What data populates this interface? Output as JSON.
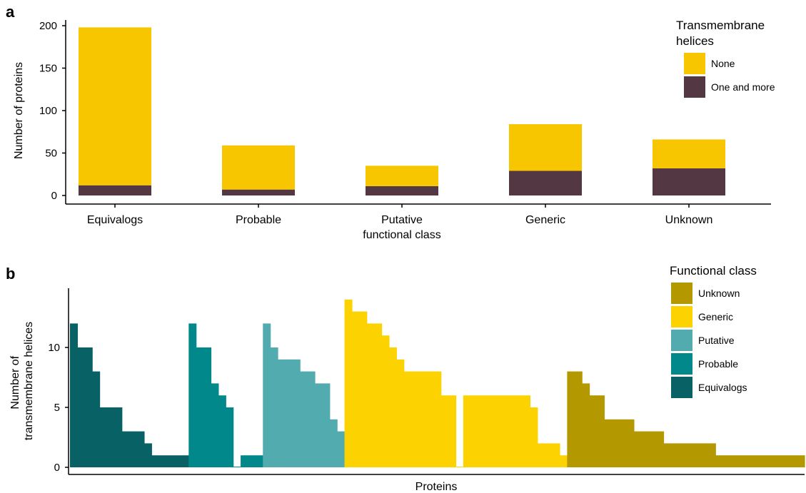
{
  "panel_labels": {
    "a": "a",
    "b": "b"
  },
  "colors": {
    "none": "#f8c600",
    "one_and_more": "#533743",
    "Unknown": "#b39800",
    "Generic": "#fcd200",
    "Putative": "#52acaf",
    "Probable": "#00888a",
    "Equivalogs": "#086165"
  },
  "chart_data": [
    {
      "type": "bar",
      "stacked": true,
      "categories": [
        "Equivalogs",
        "Probable",
        "Putative functional class",
        "Generic",
        "Unknown"
      ],
      "category_labels": [
        [
          "Equivalogs"
        ],
        [
          "Probable"
        ],
        [
          "Putative",
          "functional class"
        ],
        [
          "Generic"
        ],
        [
          "Unknown"
        ]
      ],
      "series": [
        {
          "name": "One and more",
          "values": [
            12,
            7,
            11,
            29,
            32
          ]
        },
        {
          "name": "None",
          "values": [
            186,
            52,
            24,
            55,
            34
          ]
        }
      ],
      "xlabel": "",
      "ylabel": "Number of proteins",
      "ylim": [
        0,
        210
      ],
      "yticks": [
        0,
        50,
        100,
        150,
        200
      ],
      "legend": {
        "title": "Transmembrane helices",
        "title_lines": [
          "Transmembrane",
          "helices"
        ],
        "position": "top-right",
        "items": [
          "None",
          "One and more"
        ]
      },
      "grid": false
    },
    {
      "type": "bar",
      "xlabel": "Proteins",
      "ylabel": "Number of transmembrane helices",
      "ylabel_lines": [
        "Number of",
        "transmembrane helices"
      ],
      "ylim": [
        0,
        14
      ],
      "yticks": [
        0,
        5,
        10
      ],
      "legend": {
        "title": "Functional class",
        "position": "top-right",
        "items": [
          "Unknown",
          "Generic",
          "Putative",
          "Probable",
          "Equivalogs"
        ]
      },
      "grid": false,
      "series": [
        {
          "name": "Equivalogs",
          "runs": [
            [
              12,
              1
            ],
            [
              10,
              2
            ],
            [
              8,
              1
            ],
            [
              5,
              3
            ],
            [
              3,
              3
            ],
            [
              2,
              1
            ],
            [
              1,
              5
            ]
          ]
        },
        {
          "name": "Probable",
          "runs": [
            [
              12,
              1
            ],
            [
              10,
              2
            ],
            [
              7,
              1
            ],
            [
              6,
              1
            ],
            [
              5,
              1
            ],
            [
              0.05,
              1
            ],
            [
              1,
              3
            ]
          ]
        },
        {
          "name": "Putative",
          "runs": [
            [
              12,
              1
            ],
            [
              10,
              1
            ],
            [
              9,
              3
            ],
            [
              8,
              2
            ],
            [
              7,
              2
            ],
            [
              4,
              1
            ],
            [
              3,
              1
            ]
          ]
        },
        {
          "name": "Generic",
          "runs": [
            [
              14,
              1
            ],
            [
              13,
              2
            ],
            [
              12,
              2
            ],
            [
              11,
              1
            ],
            [
              10,
              1
            ],
            [
              9,
              1
            ],
            [
              8,
              5
            ],
            [
              6,
              2
            ],
            [
              0.05,
              1
            ],
            [
              6,
              9
            ],
            [
              5,
              1
            ],
            [
              2,
              3
            ],
            [
              1,
              1
            ]
          ]
        },
        {
          "name": "Unknown",
          "runs": [
            [
              8,
              2
            ],
            [
              7,
              1
            ],
            [
              6,
              2
            ],
            [
              4,
              4
            ],
            [
              3,
              4
            ],
            [
              2,
              7
            ],
            [
              1,
              12
            ]
          ]
        }
      ]
    }
  ]
}
